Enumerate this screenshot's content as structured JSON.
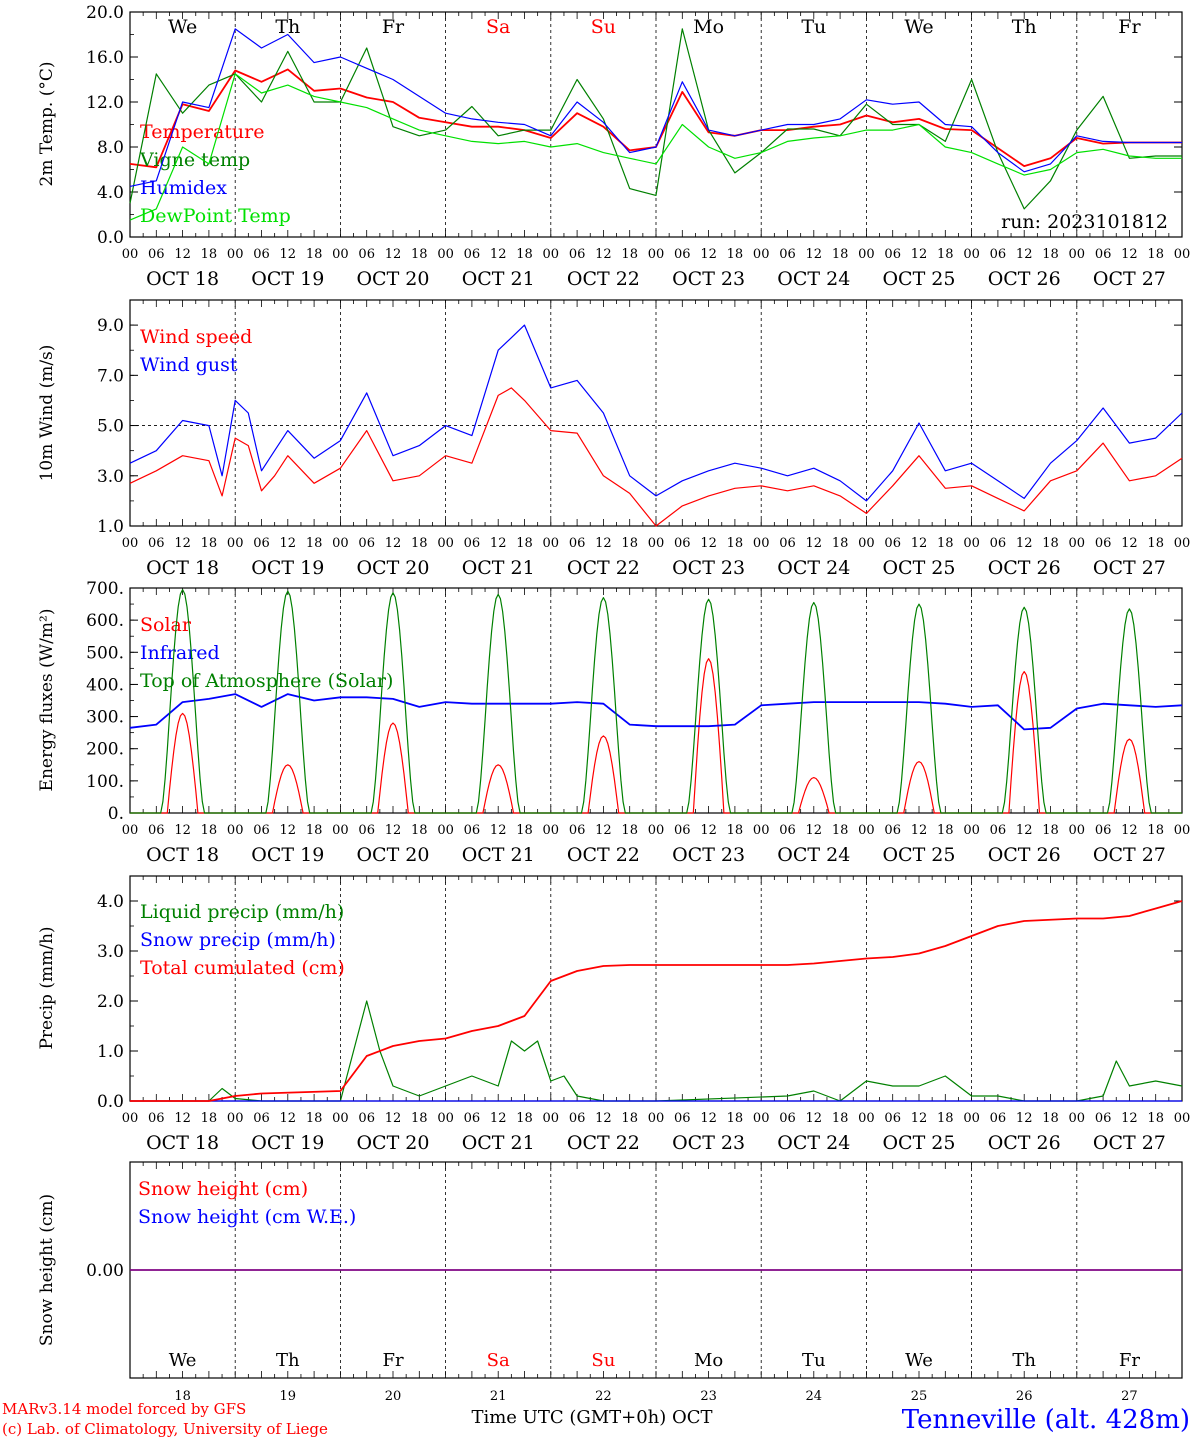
{
  "meta": {
    "run_label": "run: 2023101812",
    "footer_left_1": "MARv3.14 model forced by GFS",
    "footer_left_2": "(c) Lab. of Climatology, University of Liege",
    "footer_axis": "Time UTC (GMT+0h) OCT",
    "footer_station": "Tenneville (alt. 428m)"
  },
  "time_axis": {
    "hour_labels": [
      "00",
      "06",
      "12",
      "18"
    ],
    "end_label": "00",
    "date_labels": [
      "OCT 18",
      "OCT 19",
      "OCT 20",
      "OCT 21",
      "OCT 22",
      "OCT 23",
      "OCT 24",
      "OCT 25",
      "OCT 26",
      "OCT 27"
    ],
    "weekdays": [
      "We",
      "Th",
      "Fr",
      "Sa",
      "Su",
      "Mo",
      "Tu",
      "We",
      "Th",
      "Fr"
    ],
    "weekend_flags": [
      false,
      false,
      false,
      true,
      true,
      false,
      false,
      false,
      false,
      false
    ],
    "day_numbers": [
      "18",
      "19",
      "20",
      "21",
      "22",
      "23",
      "24",
      "25",
      "26",
      "27"
    ]
  },
  "colors": {
    "red": "#ff0000",
    "green": "#008000",
    "blue": "#0000ff",
    "lightgreen": "#00e000",
    "purple": "#800080",
    "grid": "#000000"
  },
  "chart_data": [
    {
      "type": "line",
      "ylabel": "2m Temp. (°C)",
      "ylim": [
        0,
        20
      ],
      "y_ticks": [
        "0.0",
        "4.0",
        "8.0",
        "12.0",
        "16.0",
        "20.0"
      ],
      "x_unit": "hours since Oct 18 00 UTC",
      "series": [
        {
          "name": "Temperature",
          "color": "red",
          "x": [
            0,
            6,
            12,
            18,
            24,
            30,
            36,
            42,
            48,
            54,
            60,
            66,
            72,
            78,
            84,
            90,
            96,
            102,
            108,
            114,
            120,
            126,
            132,
            138,
            144,
            150,
            156,
            162,
            168,
            174,
            180,
            186,
            192,
            198,
            204,
            210,
            216,
            222,
            228,
            234,
            240
          ],
          "y": [
            6.5,
            6.2,
            11.8,
            11.2,
            14.8,
            13.8,
            14.9,
            13.0,
            13.2,
            12.4,
            12.0,
            10.6,
            10.2,
            9.8,
            9.8,
            9.5,
            8.8,
            11.0,
            9.8,
            7.7,
            8.0,
            12.9,
            9.3,
            9.0,
            9.5,
            9.5,
            9.8,
            10.0,
            10.8,
            10.2,
            10.5,
            9.6,
            9.5,
            7.9,
            6.3,
            7.0,
            8.8,
            8.3,
            8.4,
            8.4,
            8.4
          ]
        },
        {
          "name": "Vigne temp",
          "color": "green",
          "x": [
            0,
            6,
            12,
            18,
            24,
            30,
            36,
            42,
            48,
            54,
            60,
            66,
            72,
            78,
            84,
            90,
            96,
            102,
            108,
            114,
            120,
            126,
            132,
            138,
            144,
            150,
            156,
            162,
            168,
            174,
            180,
            186,
            192,
            198,
            204,
            210,
            216,
            222,
            228,
            234,
            240
          ],
          "y": [
            3.0,
            14.5,
            11.0,
            13.5,
            14.5,
            12.0,
            16.5,
            12.0,
            12.0,
            16.8,
            9.8,
            9.0,
            9.5,
            11.6,
            9.0,
            9.5,
            9.5,
            14.0,
            10.5,
            4.3,
            3.7,
            18.5,
            9.5,
            5.7,
            7.5,
            9.6,
            9.6,
            9.0,
            11.8,
            10.0,
            10.0,
            8.5,
            14.0,
            7.5,
            2.5,
            5.0,
            9.5,
            12.5,
            7.0,
            7.2,
            7.2
          ]
        },
        {
          "name": "Humidex",
          "color": "blue",
          "x": [
            0,
            6,
            12,
            18,
            24,
            30,
            36,
            42,
            48,
            54,
            60,
            66,
            72,
            78,
            84,
            90,
            96,
            102,
            108,
            114,
            120,
            126,
            132,
            138,
            144,
            150,
            156,
            162,
            168,
            174,
            180,
            186,
            192,
            198,
            204,
            210,
            216,
            222,
            228,
            234,
            240
          ],
          "y": [
            4.5,
            5.0,
            12.0,
            11.5,
            18.5,
            16.8,
            18.0,
            15.5,
            16.0,
            15.0,
            14.0,
            12.5,
            11.0,
            10.5,
            10.2,
            10.0,
            9.0,
            12.0,
            10.2,
            7.5,
            8.0,
            13.8,
            9.5,
            9.0,
            9.5,
            10.0,
            10.0,
            10.5,
            12.2,
            11.8,
            12.0,
            10.0,
            9.8,
            7.5,
            5.8,
            6.5,
            9.0,
            8.5,
            8.4,
            8.4,
            8.4
          ]
        },
        {
          "name": "DewPoint Temp",
          "color": "lightgreen",
          "x": [
            0,
            6,
            12,
            18,
            24,
            30,
            36,
            42,
            48,
            54,
            60,
            66,
            72,
            78,
            84,
            90,
            96,
            102,
            108,
            114,
            120,
            126,
            132,
            138,
            144,
            150,
            156,
            162,
            168,
            174,
            180,
            186,
            192,
            198,
            204,
            210,
            216,
            222,
            228,
            234,
            240
          ],
          "y": [
            1.5,
            2.5,
            8.0,
            6.5,
            14.5,
            12.8,
            13.5,
            12.5,
            12.0,
            11.5,
            10.5,
            9.5,
            9.0,
            8.5,
            8.3,
            8.5,
            8.0,
            8.3,
            7.5,
            7.0,
            6.5,
            10.0,
            8.0,
            7.0,
            7.5,
            8.5,
            8.8,
            9.0,
            9.5,
            9.5,
            10.0,
            8.0,
            7.5,
            6.5,
            5.5,
            6.0,
            7.5,
            7.8,
            7.2,
            7.0,
            7.0
          ]
        }
      ]
    },
    {
      "type": "line",
      "ylabel": "10m Wind (m/s)",
      "ylim": [
        1,
        10
      ],
      "y_ticks": [
        "1.0",
        "3.0",
        "5.0",
        "7.0",
        "9.0"
      ],
      "reference_line": 5.0,
      "series": [
        {
          "name": "Wind speed",
          "color": "red",
          "x": [
            0,
            6,
            12,
            18,
            21,
            24,
            27,
            30,
            33,
            36,
            42,
            48,
            54,
            60,
            66,
            72,
            78,
            84,
            87,
            90,
            96,
            102,
            108,
            114,
            120,
            126,
            132,
            138,
            144,
            150,
            156,
            162,
            168,
            174,
            180,
            186,
            192,
            198,
            204,
            210,
            216,
            222,
            228,
            234,
            240
          ],
          "y": [
            2.7,
            3.2,
            3.8,
            3.6,
            2.2,
            4.5,
            4.2,
            2.4,
            3.0,
            3.8,
            2.7,
            3.3,
            4.8,
            2.8,
            3.0,
            3.8,
            3.5,
            6.2,
            6.5,
            6.0,
            4.8,
            4.7,
            3.0,
            2.3,
            1.0,
            1.8,
            2.2,
            2.5,
            2.6,
            2.4,
            2.6,
            2.2,
            1.5,
            2.6,
            3.8,
            2.5,
            2.6,
            2.1,
            1.6,
            2.8,
            3.2,
            4.3,
            2.8,
            3.0,
            3.7
          ]
        },
        {
          "name": "Wind gust",
          "color": "blue",
          "x": [
            0,
            6,
            12,
            18,
            21,
            24,
            27,
            30,
            33,
            36,
            42,
            48,
            54,
            60,
            66,
            72,
            78,
            84,
            87,
            90,
            96,
            102,
            108,
            114,
            120,
            126,
            132,
            138,
            144,
            150,
            156,
            162,
            168,
            174,
            180,
            186,
            192,
            198,
            204,
            210,
            216,
            222,
            228,
            234,
            240
          ],
          "y": [
            3.5,
            4.0,
            5.2,
            5.0,
            3.0,
            6.0,
            5.5,
            3.2,
            4.0,
            4.8,
            3.7,
            4.4,
            6.3,
            3.8,
            4.2,
            5.0,
            4.6,
            8.0,
            8.5,
            9.0,
            6.5,
            6.8,
            5.5,
            3.0,
            2.2,
            2.8,
            3.2,
            3.5,
            3.3,
            3.0,
            3.3,
            2.8,
            2.0,
            3.2,
            5.1,
            3.2,
            3.5,
            2.8,
            2.1,
            3.5,
            4.4,
            5.7,
            4.3,
            4.5,
            5.5
          ]
        }
      ]
    },
    {
      "type": "line",
      "ylabel": "Energy fluxes (W/m²)",
      "ylim": [
        0,
        700
      ],
      "y_ticks": [
        "0.",
        "100.",
        "200.",
        "300.",
        "400.",
        "500.",
        "600.",
        "700."
      ],
      "series": [
        {
          "name": "Solar",
          "color": "red",
          "daily_peaks": [
            310,
            150,
            280,
            150,
            240,
            480,
            110,
            160,
            440,
            230
          ]
        },
        {
          "name": "Infrared",
          "color": "blue",
          "x": [
            0,
            6,
            12,
            18,
            24,
            30,
            36,
            42,
            48,
            54,
            60,
            66,
            72,
            78,
            84,
            90,
            96,
            102,
            108,
            114,
            120,
            126,
            132,
            138,
            144,
            150,
            156,
            162,
            168,
            174,
            180,
            186,
            192,
            198,
            204,
            210,
            216,
            222,
            228,
            234,
            240
          ],
          "y": [
            265,
            275,
            345,
            355,
            370,
            330,
            370,
            350,
            360,
            360,
            355,
            330,
            345,
            340,
            340,
            340,
            340,
            345,
            340,
            275,
            270,
            270,
            270,
            275,
            335,
            340,
            345,
            345,
            345,
            345,
            345,
            340,
            330,
            335,
            260,
            265,
            325,
            340,
            335,
            330,
            335
          ]
        },
        {
          "name": "Top of Atmosphere (Solar)",
          "color": "green",
          "daily_peaks": [
            695,
            690,
            685,
            680,
            670,
            665,
            655,
            650,
            640,
            635
          ]
        }
      ]
    },
    {
      "type": "line",
      "ylabel": "Precip (mm/h)",
      "ylim": [
        0,
        4.5
      ],
      "y_ticks": [
        "0.0",
        "1.0",
        "2.0",
        "3.0",
        "4.0"
      ],
      "series": [
        {
          "name": "Liquid precip (mm/h)",
          "color": "green",
          "x": [
            0,
            18,
            21,
            24,
            30,
            36,
            42,
            48,
            54,
            57,
            60,
            66,
            72,
            78,
            84,
            87,
            90,
            93,
            96,
            99,
            102,
            108,
            114,
            120,
            150,
            156,
            162,
            168,
            174,
            180,
            186,
            192,
            198,
            204,
            210,
            216,
            222,
            225,
            228,
            234,
            240
          ],
          "y": [
            0,
            0,
            0.25,
            0.05,
            0,
            0,
            0,
            0,
            2.0,
            1.0,
            0.3,
            0.1,
            0.3,
            0.5,
            0.3,
            1.2,
            1.0,
            1.2,
            0.4,
            0.5,
            0.1,
            0,
            0,
            0,
            0.1,
            0.2,
            0,
            0.4,
            0.3,
            0.3,
            0.5,
            0.1,
            0.1,
            0,
            0,
            0,
            0.1,
            0.8,
            0.3,
            0.4,
            0.3
          ]
        },
        {
          "name": "Snow precip (mm/h)",
          "color": "blue",
          "x": [
            0,
            240
          ],
          "y": [
            0,
            0
          ]
        },
        {
          "name": "Total cumulated (cm)",
          "color": "red",
          "x": [
            0,
            18,
            24,
            30,
            48,
            54,
            60,
            66,
            72,
            78,
            84,
            90,
            96,
            102,
            108,
            114,
            120,
            150,
            156,
            162,
            168,
            174,
            180,
            186,
            192,
            198,
            204,
            216,
            222,
            228,
            234,
            240
          ],
          "y": [
            0,
            0,
            0.1,
            0.15,
            0.2,
            0.9,
            1.1,
            1.2,
            1.25,
            1.4,
            1.5,
            1.7,
            2.4,
            2.6,
            2.7,
            2.72,
            2.72,
            2.72,
            2.75,
            2.8,
            2.85,
            2.88,
            2.95,
            3.1,
            3.3,
            3.5,
            3.6,
            3.65,
            3.65,
            3.7,
            3.85,
            4.0
          ]
        }
      ]
    },
    {
      "type": "line",
      "ylabel": "Snow height (cm)",
      "y_ticks": [
        "0.00"
      ],
      "series": [
        {
          "name": "Snow height (cm)",
          "color": "red",
          "x": [
            0,
            240
          ],
          "y": [
            0,
            0
          ]
        },
        {
          "name": "Snow height (cm W.E.)",
          "color": "blue",
          "x": [
            0,
            240
          ],
          "y": [
            0,
            0
          ]
        }
      ]
    }
  ]
}
